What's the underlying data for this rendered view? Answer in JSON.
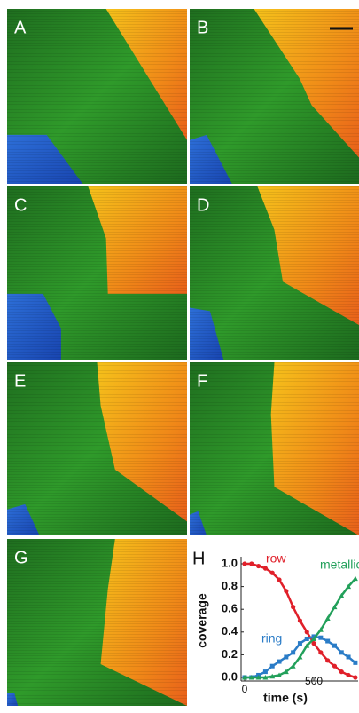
{
  "panels": [
    {
      "label": "A"
    },
    {
      "label": "B"
    },
    {
      "label": "C"
    },
    {
      "label": "D"
    },
    {
      "label": "E"
    },
    {
      "label": "F"
    },
    {
      "label": "G"
    }
  ],
  "chart_data": {
    "type": "line",
    "title": "H",
    "y_label": "coverage",
    "x_label": "time (s)",
    "x": [
      0,
      50,
      100,
      150,
      200,
      250,
      300,
      350,
      400,
      450,
      500,
      550,
      600,
      650,
      700,
      750,
      800
    ],
    "series": [
      {
        "name": "row",
        "color": "#e0202a",
        "values": [
          1.0,
          1.0,
          0.98,
          0.96,
          0.92,
          0.86,
          0.76,
          0.62,
          0.5,
          0.4,
          0.3,
          0.22,
          0.15,
          0.1,
          0.05,
          0.02,
          0.0
        ]
      },
      {
        "name": "ring",
        "color": "#2a7cc7",
        "values": [
          0.0,
          0.0,
          0.02,
          0.05,
          0.1,
          0.14,
          0.18,
          0.22,
          0.3,
          0.34,
          0.36,
          0.35,
          0.32,
          0.28,
          0.22,
          0.18,
          0.13
        ]
      },
      {
        "name": "metallic",
        "color": "#22a05a",
        "values": [
          0.0,
          0.0,
          0.0,
          0.0,
          0.01,
          0.02,
          0.05,
          0.1,
          0.18,
          0.28,
          0.34,
          0.42,
          0.52,
          0.62,
          0.72,
          0.8,
          0.87
        ]
      }
    ],
    "xlim": [
      0,
      820
    ],
    "ylim": [
      0,
      1.0
    ],
    "xticks": [
      0,
      500
    ],
    "yticks": [
      {
        "value": 0,
        "label": "0.0"
      },
      {
        "value": 0.2,
        "label": "0.2"
      },
      {
        "value": 0.4,
        "label": "0.4"
      },
      {
        "value": 0.6,
        "label": "0.6"
      },
      {
        "value": 0.8,
        "label": "0.8"
      },
      {
        "value": 1.0,
        "label": "1.0"
      }
    ]
  }
}
